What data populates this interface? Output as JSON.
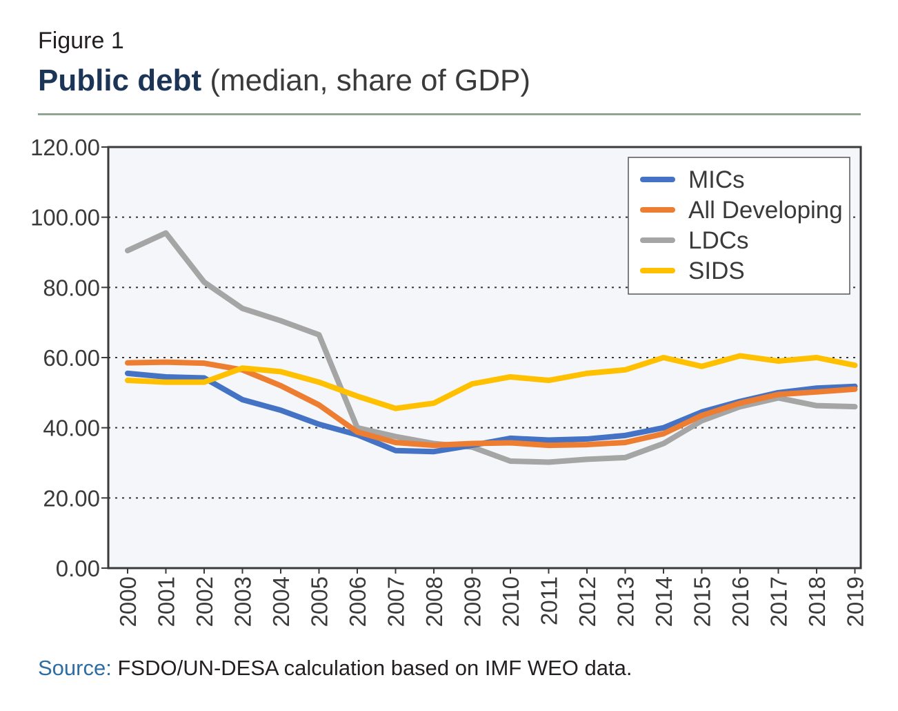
{
  "figure": {
    "label": "Figure 1",
    "title_bold": "Public debt",
    "title_rest": "(median, share of GDP)",
    "source_label": "Source:",
    "source_text": "FSDO/UN-DESA calculation based on IMF WEO data."
  },
  "chart_data": {
    "type": "line",
    "x": [
      "2000",
      "2001",
      "2002",
      "2003",
      "2004",
      "2005",
      "2006",
      "2007",
      "2008",
      "2009",
      "2010",
      "2011",
      "2012",
      "2013",
      "2014",
      "2015",
      "2016",
      "2017",
      "2018",
      "2019"
    ],
    "ylim": [
      0,
      120
    ],
    "yticks": [
      "0.00",
      "20.00",
      "40.00",
      "60.00",
      "80.00",
      "100.00",
      "120.00"
    ],
    "grid": "horizontal dotted",
    "legend_position": "top-right",
    "series": [
      {
        "name": "MICs",
        "color": "#4472c4",
        "values": [
          55.5,
          54.5,
          54.2,
          48.0,
          45.0,
          41.0,
          38.0,
          33.5,
          33.2,
          35.0,
          37.0,
          36.5,
          36.8,
          37.8,
          40.0,
          44.5,
          47.5,
          50.0,
          51.3,
          51.8
        ]
      },
      {
        "name": "All Developing",
        "color": "#ed7d31",
        "values": [
          58.5,
          58.7,
          58.4,
          56.5,
          52.0,
          46.5,
          38.8,
          35.8,
          35.0,
          35.5,
          35.7,
          35.0,
          35.2,
          35.8,
          38.3,
          43.5,
          47.0,
          49.5,
          50.2,
          51.0
        ]
      },
      {
        "name": "LDCs",
        "color": "#a5a5a5",
        "values": [
          90.5,
          95.5,
          81.5,
          74.0,
          70.5,
          66.5,
          40.0,
          37.5,
          35.5,
          34.5,
          30.5,
          30.2,
          31.0,
          31.5,
          35.5,
          42.0,
          46.0,
          48.5,
          46.3,
          46.0
        ]
      },
      {
        "name": "SIDS",
        "color": "#ffc000",
        "values": [
          53.5,
          53.0,
          53.0,
          57.0,
          56.0,
          53.0,
          49.0,
          45.5,
          47.0,
          52.5,
          54.5,
          53.5,
          55.5,
          56.5,
          60.0,
          57.5,
          60.5,
          59.0,
          60.0,
          57.8
        ]
      }
    ]
  }
}
